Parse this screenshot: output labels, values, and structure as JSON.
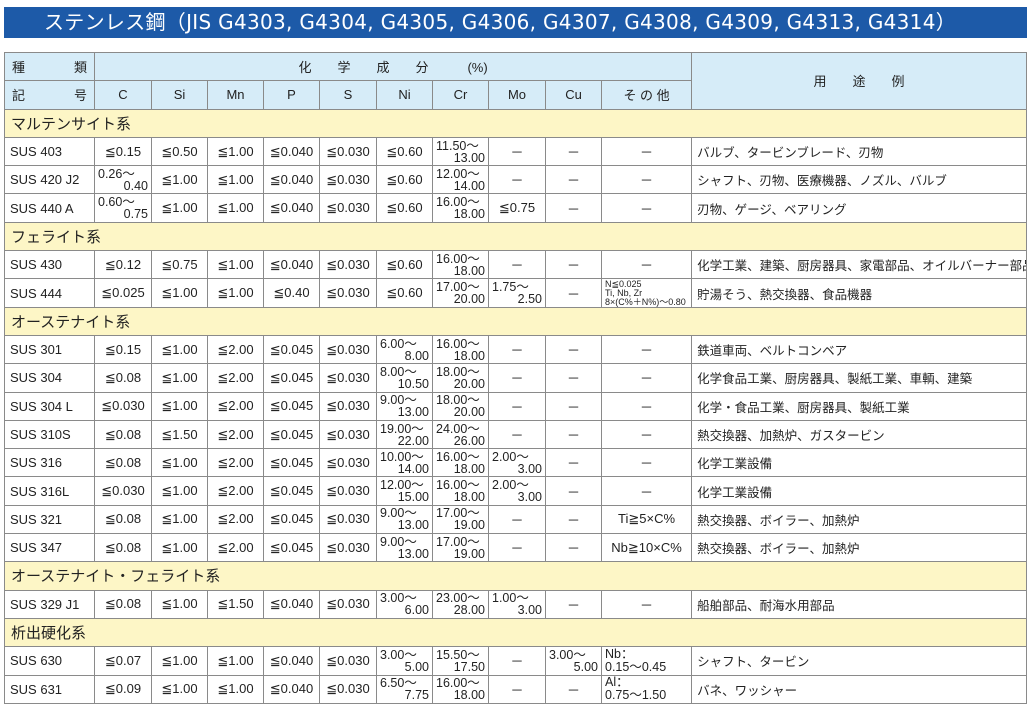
{
  "title": "ステンレス鋼（JIS G4303, G4304, G4305, G4306, G4307, G4308, G4309, G4313, G4314）",
  "colors": {
    "title_bar": "#1d5aa8",
    "header_bg": "#d6ecf8",
    "section_bg": "#fdf6c6"
  },
  "header": {
    "kind_1": [
      "種",
      "類"
    ],
    "kind_2": [
      "記",
      "号"
    ],
    "composition": "化　　学　　成　　分　　　(%)",
    "columns": [
      "C",
      "Si",
      "Mn",
      "P",
      "S",
      "Ni",
      "Cr",
      "Mo",
      "Cu",
      "そ の 他"
    ],
    "usage": "用　　途　　例"
  },
  "sections": [
    {
      "name": "マルテンサイト系",
      "rows": [
        [
          "SUS 403",
          "≦0.15",
          "≦0.50",
          "≦1.00",
          "≦0.040",
          "≦0.030",
          "≦0.60",
          [
            "11.50～",
            "13.00"
          ],
          "－",
          "－",
          "－",
          "バルブ、タービンブレード、刃物"
        ],
        [
          "SUS 420 J2",
          [
            "0.26～",
            "0.40"
          ],
          "≦1.00",
          "≦1.00",
          "≦0.040",
          "≦0.030",
          "≦0.60",
          [
            "12.00～",
            "14.00"
          ],
          "－",
          "－",
          "－",
          "シャフト、刃物、医療機器、ノズル、バルブ"
        ],
        [
          "SUS 440 A",
          [
            "0.60～",
            "0.75"
          ],
          "≦1.00",
          "≦1.00",
          "≦0.040",
          "≦0.030",
          "≦0.60",
          [
            "16.00～",
            "18.00"
          ],
          "≦0.75",
          "－",
          "－",
          "刃物、ゲージ、ベアリング"
        ]
      ]
    },
    {
      "name": "フェライト系",
      "rows": [
        [
          "SUS 430",
          "≦0.12",
          "≦0.75",
          "≦1.00",
          "≦0.040",
          "≦0.030",
          "≦0.60",
          [
            "16.00～",
            "18.00"
          ],
          "－",
          "－",
          "－",
          "化学工業、建築、厨房器具、家電部品、オイルバーナー部品"
        ],
        [
          "SUS 444",
          "≦0.025",
          "≦1.00",
          "≦1.00",
          "≦0.40",
          "≦0.030",
          "≦0.60",
          [
            "17.00～",
            "20.00"
          ],
          [
            "1.75～",
            "2.50"
          ],
          "－",
          {
            "note": [
              "N≦0.025",
              "Ti, Nb, Zr",
              "8×(C%＋N%)～0.80"
            ]
          },
          "貯湯そう、熱交換器、食品機器"
        ]
      ]
    },
    {
      "name": "オーステナイト系",
      "rows": [
        [
          "SUS 301",
          "≦0.15",
          "≦1.00",
          "≦2.00",
          "≦0.045",
          "≦0.030",
          [
            "6.00～",
            "8.00"
          ],
          [
            "16.00～",
            "18.00"
          ],
          "－",
          "－",
          "－",
          "鉄道車両、ベルトコンベア"
        ],
        [
          "SUS 304",
          "≦0.08",
          "≦1.00",
          "≦2.00",
          "≦0.045",
          "≦0.030",
          [
            "8.00～",
            "10.50"
          ],
          [
            "18.00～",
            "20.00"
          ],
          "－",
          "－",
          "－",
          "化学食品工業、厨房器具、製紙工業、車輌、建築"
        ],
        [
          "SUS 304 L",
          "≦0.030",
          "≦1.00",
          "≦2.00",
          "≦0.045",
          "≦0.030",
          [
            "9.00～",
            "13.00"
          ],
          [
            "18.00～",
            "20.00"
          ],
          "－",
          "－",
          "－",
          "化学・食品工業、厨房器具、製紙工業"
        ],
        [
          "SUS 310S",
          "≦0.08",
          "≦1.50",
          "≦2.00",
          "≦0.045",
          "≦0.030",
          [
            "19.00～",
            "22.00"
          ],
          [
            "24.00～",
            "26.00"
          ],
          "－",
          "－",
          "－",
          "熱交換器、加熱炉、ガスタービン"
        ],
        [
          "SUS 316",
          "≦0.08",
          "≦1.00",
          "≦2.00",
          "≦0.045",
          "≦0.030",
          [
            "10.00～",
            "14.00"
          ],
          [
            "16.00～",
            "18.00"
          ],
          [
            "2.00～",
            "3.00"
          ],
          "－",
          "－",
          "化学工業設備"
        ],
        [
          "SUS 316L",
          "≦0.030",
          "≦1.00",
          "≦2.00",
          "≦0.045",
          "≦0.030",
          [
            "12.00～",
            "15.00"
          ],
          [
            "16.00～",
            "18.00"
          ],
          [
            "2.00～",
            "3.00"
          ],
          "－",
          "－",
          "化学工業設備"
        ],
        [
          "SUS 321",
          "≦0.08",
          "≦1.00",
          "≦2.00",
          "≦0.045",
          "≦0.030",
          [
            "9.00～",
            "13.00"
          ],
          [
            "17.00～",
            "19.00"
          ],
          "－",
          "－",
          "Ti≧5×C%",
          "熱交換器、ボイラー、加熱炉"
        ],
        [
          "SUS 347",
          "≦0.08",
          "≦1.00",
          "≦2.00",
          "≦0.045",
          "≦0.030",
          [
            "9.00～",
            "13.00"
          ],
          [
            "17.00～",
            "19.00"
          ],
          "－",
          "－",
          "Nb≧10×C%",
          "熱交換器、ボイラー、加熱炉"
        ]
      ]
    },
    {
      "name": "オーステナイト・フェライト系",
      "rows": [
        [
          "SUS 329 J1",
          "≦0.08",
          "≦1.00",
          "≦1.50",
          "≦0.040",
          "≦0.030",
          [
            "3.00～",
            "6.00"
          ],
          [
            "23.00～",
            "28.00"
          ],
          [
            "1.00～",
            "3.00"
          ],
          "－",
          "－",
          "船舶部品、耐海水用部品"
        ]
      ]
    },
    {
      "name": "析出硬化系",
      "rows": [
        [
          "SUS 630",
          "≦0.07",
          "≦1.00",
          "≦1.00",
          "≦0.040",
          "≦0.030",
          [
            "3.00～",
            "5.00"
          ],
          [
            "15.50～",
            "17.50"
          ],
          "－",
          [
            "3.00～",
            "5.00"
          ],
          {
            "two": [
              "Nb：",
              "0.15～0.45"
            ]
          },
          "シャフト、タービン"
        ],
        [
          "SUS 631",
          "≦0.09",
          "≦1.00",
          "≦1.00",
          "≦0.040",
          "≦0.030",
          [
            "6.50～",
            "7.75"
          ],
          [
            "16.00～",
            "18.00"
          ],
          "－",
          "－",
          {
            "two": [
              "Al：",
              "0.75～1.50"
            ]
          },
          "バネ、ワッシャー"
        ]
      ]
    }
  ]
}
